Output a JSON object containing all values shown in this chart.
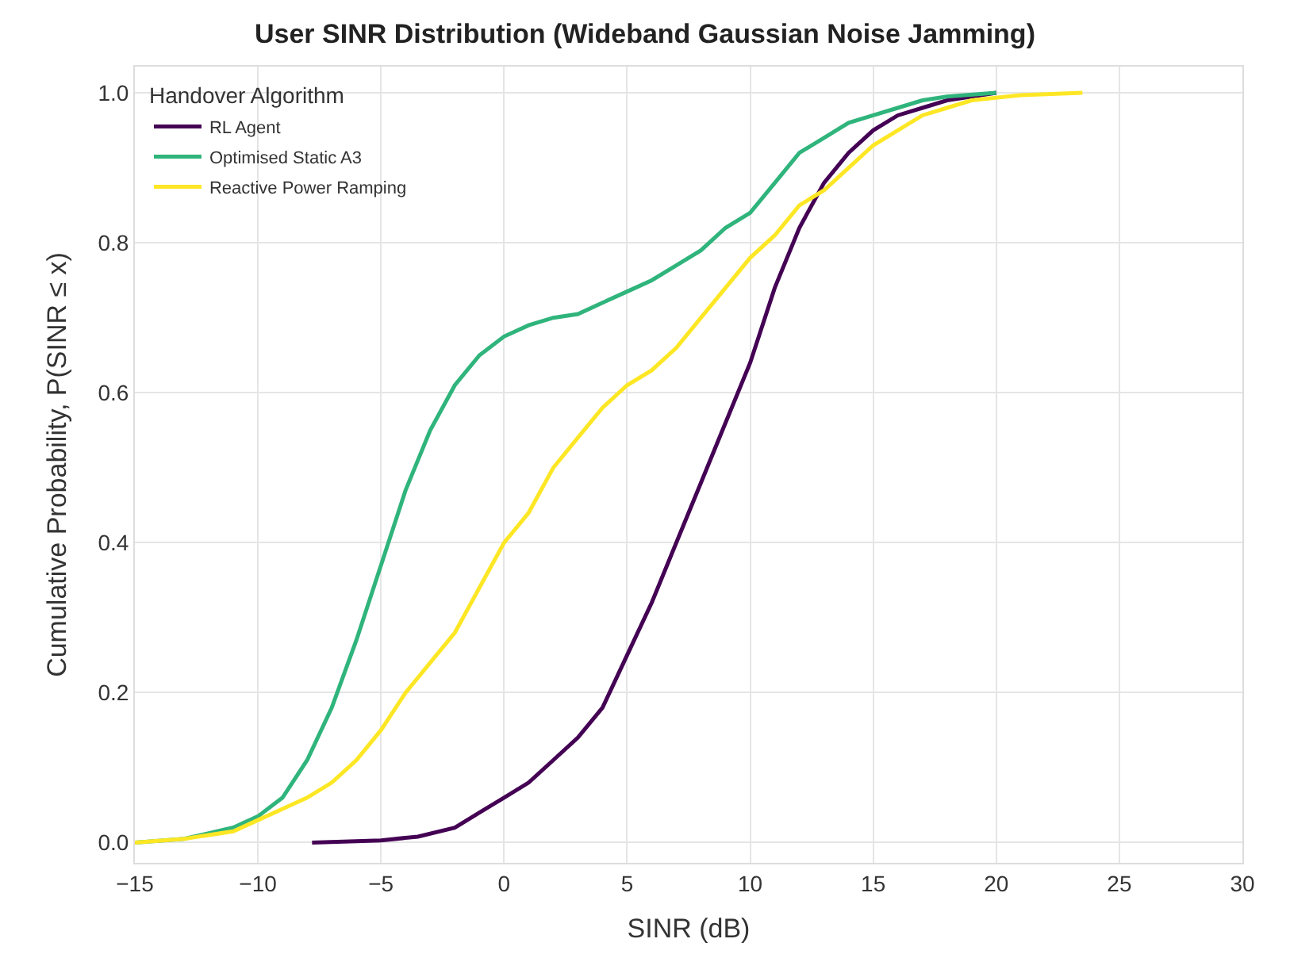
{
  "chart_data": {
    "type": "line",
    "title": "User SINR Distribution (Wideband Gaussian Noise Jamming)",
    "xlabel": "SINR (dB)",
    "ylabel": "Cumulative Probability, P(SINR ≤ x)",
    "legend_title": "Handover Algorithm",
    "series": [
      {
        "name": "RL Agent",
        "color": "#440154",
        "x": [
          -7.8,
          -5,
          -3.5,
          -2,
          -1,
          0,
          1,
          2,
          3,
          4,
          5,
          6,
          7,
          8,
          9,
          10,
          11,
          12,
          13,
          14,
          15,
          16,
          17,
          18,
          19,
          20
        ],
        "values": [
          0,
          0.003,
          0.008,
          0.02,
          0.04,
          0.06,
          0.08,
          0.11,
          0.14,
          0.18,
          0.25,
          0.32,
          0.4,
          0.48,
          0.56,
          0.64,
          0.74,
          0.82,
          0.88,
          0.92,
          0.95,
          0.97,
          0.98,
          0.99,
          0.995,
          1.0
        ]
      },
      {
        "name": "Optimised Static A3",
        "color": "#2fb47c",
        "x": [
          -15,
          -13,
          -11,
          -10,
          -9,
          -8,
          -7,
          -6,
          -5,
          -4,
          -3,
          -2,
          -1,
          0,
          1,
          2,
          3,
          4,
          5,
          6,
          7,
          8,
          9,
          10,
          11,
          12,
          13,
          14,
          15,
          16,
          17,
          18,
          20
        ],
        "values": [
          0,
          0.005,
          0.02,
          0.035,
          0.06,
          0.11,
          0.18,
          0.27,
          0.37,
          0.47,
          0.55,
          0.61,
          0.65,
          0.675,
          0.69,
          0.7,
          0.705,
          0.72,
          0.735,
          0.75,
          0.77,
          0.79,
          0.82,
          0.84,
          0.88,
          0.92,
          0.94,
          0.96,
          0.97,
          0.98,
          0.99,
          0.995,
          1.0
        ]
      },
      {
        "name": "Reactive Power Ramping",
        "color": "#fde725",
        "x": [
          -15,
          -13,
          -11,
          -10,
          -9,
          -8,
          -7,
          -6,
          -5,
          -4,
          -3,
          -2,
          -1,
          0,
          1,
          2,
          3,
          4,
          5,
          6,
          7,
          8,
          9,
          10,
          11,
          12,
          13,
          14,
          15,
          16,
          17,
          18,
          19,
          21,
          23.5
        ],
        "values": [
          0,
          0.005,
          0.015,
          0.03,
          0.045,
          0.06,
          0.08,
          0.11,
          0.15,
          0.2,
          0.24,
          0.28,
          0.34,
          0.4,
          0.44,
          0.5,
          0.54,
          0.58,
          0.61,
          0.63,
          0.66,
          0.7,
          0.74,
          0.78,
          0.81,
          0.85,
          0.87,
          0.9,
          0.93,
          0.95,
          0.97,
          0.98,
          0.99,
          0.997,
          1.0
        ]
      }
    ],
    "xlim": [
      -15,
      30
    ],
    "xticks": [
      {
        "value": -15,
        "label": "−15"
      },
      {
        "value": -10,
        "label": "−10"
      },
      {
        "value": -5,
        "label": "−5"
      },
      0,
      5,
      10,
      15,
      20,
      25,
      30
    ],
    "ylim": [
      -0.027,
      1.035
    ],
    "yticks": [
      {
        "value": 0,
        "label": "0.0"
      },
      {
        "value": 0.2,
        "label": "0.2"
      },
      {
        "value": 0.4,
        "label": "0.4"
      },
      {
        "value": 0.6,
        "label": "0.6"
      },
      {
        "value": 0.8,
        "label": "0.8"
      },
      {
        "value": 1,
        "label": "1.0"
      }
    ],
    "grid": true,
    "legend": "top left",
    "marker": "none",
    "line_style": "solid"
  }
}
